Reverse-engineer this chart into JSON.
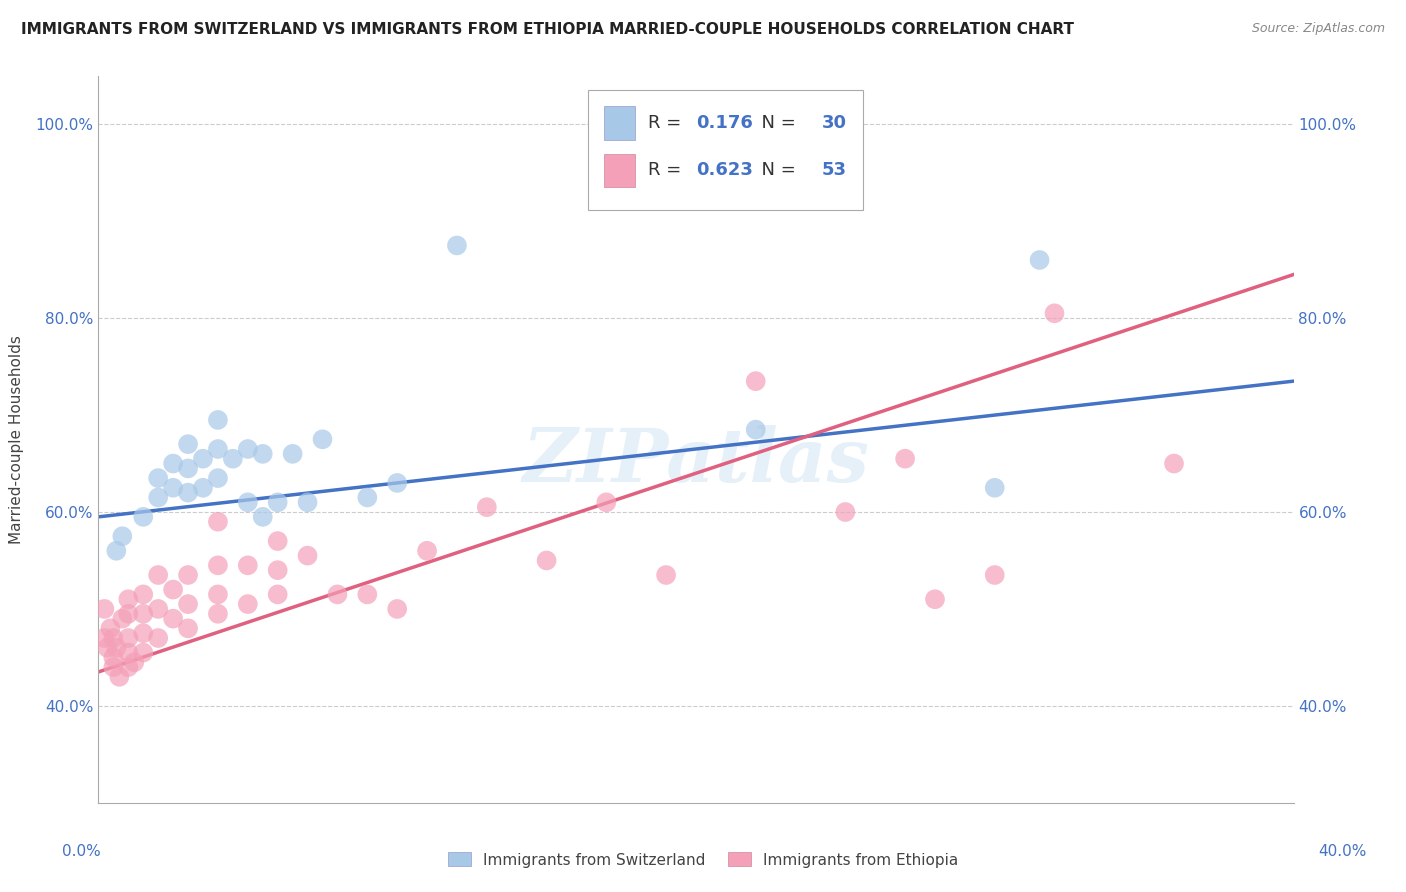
{
  "title": "IMMIGRANTS FROM SWITZERLAND VS IMMIGRANTS FROM ETHIOPIA MARRIED-COUPLE HOUSEHOLDS CORRELATION CHART",
  "source": "Source: ZipAtlas.com",
  "ylabel": "Married-couple Households",
  "yticks": [
    "40.0%",
    "60.0%",
    "80.0%",
    "100.0%"
  ],
  "ytick_vals": [
    0.4,
    0.6,
    0.8,
    1.0
  ],
  "xlim": [
    0.0,
    0.4
  ],
  "ylim": [
    0.3,
    1.05
  ],
  "legend_label1": "Immigrants from Switzerland",
  "legend_label2": "Immigrants from Ethiopia",
  "r1": 0.176,
  "n1": 30,
  "r2": 0.623,
  "n2": 53,
  "color_swiss": "#a8c8e8",
  "color_ethiopia": "#f4a0b8",
  "line_color_swiss": "#4472c4",
  "line_color_ethiopia": "#e06080",
  "watermark": "ZIPatlas",
  "swiss_x": [
    0.006,
    0.008,
    0.015,
    0.02,
    0.02,
    0.025,
    0.025,
    0.03,
    0.03,
    0.03,
    0.035,
    0.035,
    0.04,
    0.04,
    0.04,
    0.045,
    0.05,
    0.05,
    0.055,
    0.055,
    0.06,
    0.065,
    0.07,
    0.075,
    0.09,
    0.1,
    0.12,
    0.22,
    0.3,
    0.315
  ],
  "swiss_y": [
    0.56,
    0.575,
    0.595,
    0.615,
    0.635,
    0.625,
    0.65,
    0.62,
    0.645,
    0.67,
    0.625,
    0.655,
    0.635,
    0.665,
    0.695,
    0.655,
    0.61,
    0.665,
    0.595,
    0.66,
    0.61,
    0.66,
    0.61,
    0.675,
    0.615,
    0.63,
    0.875,
    0.685,
    0.625,
    0.86
  ],
  "eth_x": [
    0.002,
    0.002,
    0.003,
    0.004,
    0.005,
    0.005,
    0.005,
    0.006,
    0.007,
    0.008,
    0.01,
    0.01,
    0.01,
    0.01,
    0.01,
    0.012,
    0.015,
    0.015,
    0.015,
    0.015,
    0.02,
    0.02,
    0.02,
    0.025,
    0.025,
    0.03,
    0.03,
    0.03,
    0.04,
    0.04,
    0.04,
    0.04,
    0.05,
    0.05,
    0.06,
    0.06,
    0.06,
    0.07,
    0.08,
    0.09,
    0.1,
    0.11,
    0.13,
    0.15,
    0.17,
    0.19,
    0.22,
    0.25,
    0.27,
    0.28,
    0.3,
    0.32,
    0.36
  ],
  "eth_y": [
    0.47,
    0.5,
    0.46,
    0.48,
    0.44,
    0.45,
    0.47,
    0.46,
    0.43,
    0.49,
    0.44,
    0.455,
    0.47,
    0.495,
    0.51,
    0.445,
    0.455,
    0.475,
    0.495,
    0.515,
    0.47,
    0.5,
    0.535,
    0.49,
    0.52,
    0.48,
    0.505,
    0.535,
    0.495,
    0.515,
    0.545,
    0.59,
    0.505,
    0.545,
    0.515,
    0.54,
    0.57,
    0.555,
    0.515,
    0.515,
    0.5,
    0.56,
    0.605,
    0.55,
    0.61,
    0.535,
    0.735,
    0.6,
    0.655,
    0.51,
    0.535,
    0.805,
    0.65
  ],
  "swiss_line_x0": 0.0,
  "swiss_line_y0": 0.595,
  "swiss_line_x1": 0.4,
  "swiss_line_y1": 0.735,
  "eth_line_x0": 0.0,
  "eth_line_y0": 0.435,
  "eth_line_x1": 0.4,
  "eth_line_y1": 0.845
}
